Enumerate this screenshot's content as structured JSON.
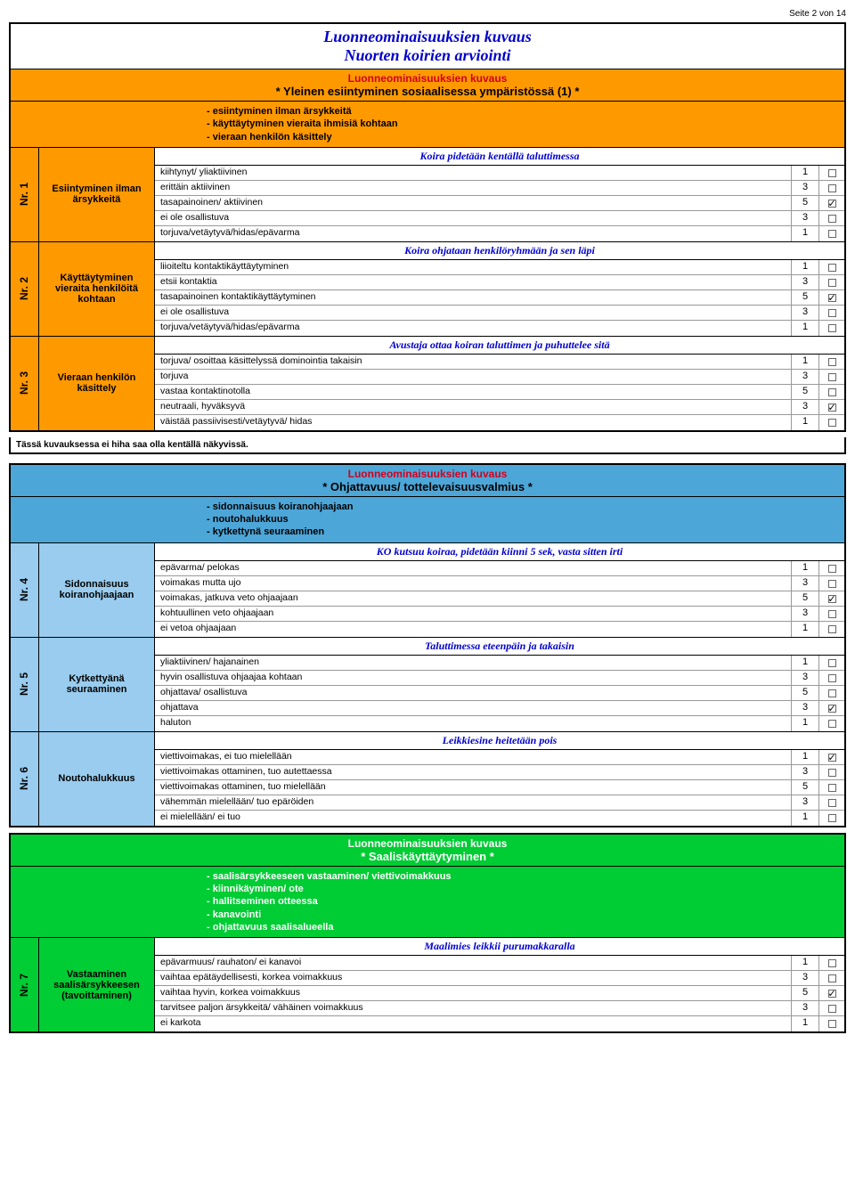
{
  "pageHeader": "Seite 2 von 14",
  "titles": {
    "main": "Luonneominaisuuksien kuvaus",
    "sub": "Nuorten koirien arviointi"
  },
  "lk": "Luonneominaisuuksien kuvaus",
  "section1": {
    "title": "* Yleinen esiintyminen sosiaalisessa ympäristössä (1) *",
    "bullets": [
      "- esiintyminen ilman ärsykkeitä",
      "- käyttäytyminen vieraita ihmisiä kohtaan",
      "- vieraan henkilön käsittely"
    ],
    "note": "Tässä kuvauksessa ei hiha saa olla kentällä näkyvissä.",
    "blocks": [
      {
        "nr": "Nr. 1",
        "cat": "Esiintyminen ilman ärsykkeitä",
        "exercise": "Koira pidetään kentällä taluttimessa",
        "opts": [
          {
            "t": "kiihtynyt/ yliaktiivinen",
            "s": "1",
            "c": false
          },
          {
            "t": "erittäin aktiivinen",
            "s": "3",
            "c": false
          },
          {
            "t": "tasapainoinen/ aktiivinen",
            "s": "5",
            "c": true
          },
          {
            "t": "ei ole osallistuva",
            "s": "3",
            "c": false
          },
          {
            "t": "torjuva/vetäytyvä/hidas/epävarma",
            "s": "1",
            "c": false
          }
        ]
      },
      {
        "nr": "Nr. 2",
        "cat": "Käyttäytyminen vieraita henkilöitä kohtaan",
        "exercise": "Koira ohjataan henkilöryhmään ja sen läpi",
        "opts": [
          {
            "t": "liioiteltu kontaktikäyttäytyminen",
            "s": "1",
            "c": false
          },
          {
            "t": "etsii kontaktia",
            "s": "3",
            "c": false
          },
          {
            "t": "tasapainoinen kontaktikäyttäytyminen",
            "s": "5",
            "c": true
          },
          {
            "t": "ei ole osallistuva",
            "s": "3",
            "c": false
          },
          {
            "t": "torjuva/vetäytyvä/hidas/epävarma",
            "s": "1",
            "c": false
          }
        ]
      },
      {
        "nr": "Nr. 3",
        "cat": "Vieraan henkilön käsittely",
        "exercise": "Avustaja ottaa koiran taluttimen ja puhuttelee sitä",
        "opts": [
          {
            "t": "torjuva/ osoittaa käsittelyssä dominointia takaisin",
            "s": "1",
            "c": false
          },
          {
            "t": "torjuva",
            "s": "3",
            "c": false
          },
          {
            "t": "vastaa kontaktinotolla",
            "s": "5",
            "c": false
          },
          {
            "t": "neutraali, hyväksyvä",
            "s": "3",
            "c": true
          },
          {
            "t": "väistää passiivisesti/vetäytyvä/ hidas",
            "s": "1",
            "c": false
          }
        ]
      }
    ]
  },
  "section2": {
    "title": "* Ohjattavuus/ tottelevaisuusvalmius *",
    "bullets": [
      "- sidonnaisuus koiranohjaajaan",
      "- noutohalukkuus",
      "- kytkettynä seuraaminen"
    ],
    "blocks": [
      {
        "nr": "Nr. 4",
        "cat": "Sidonnaisuus koiranohjaajaan",
        "exercise": "KO kutsuu koiraa, pidetään kiinni 5 sek, vasta sitten irti",
        "opts": [
          {
            "t": "epävarma/ pelokas",
            "s": "1",
            "c": false
          },
          {
            "t": "voimakas mutta ujo",
            "s": "3",
            "c": false
          },
          {
            "t": "voimakas, jatkuva veto ohjaajaan",
            "s": "5",
            "c": true
          },
          {
            "t": "kohtuullinen veto ohjaajaan",
            "s": "3",
            "c": false
          },
          {
            "t": "ei vetoa ohjaajaan",
            "s": "1",
            "c": false
          }
        ]
      },
      {
        "nr": "Nr. 5",
        "cat": "Kytkettyänä seuraaminen",
        "exercise": "Taluttimessa eteenpäin ja takaisin",
        "opts": [
          {
            "t": "yliaktiivinen/ hajanainen",
            "s": "1",
            "c": false
          },
          {
            "t": "hyvin osallistuva ohjaajaa kohtaan",
            "s": "3",
            "c": false
          },
          {
            "t": "ohjattava/ osallistuva",
            "s": "5",
            "c": false
          },
          {
            "t": "ohjattava",
            "s": "3",
            "c": true
          },
          {
            "t": "haluton",
            "s": "1",
            "c": false
          }
        ]
      },
      {
        "nr": "Nr. 6",
        "cat": "Noutohalukkuus",
        "exercise": "Leikkiesine heitetään pois",
        "opts": [
          {
            "t": "viettivoimakas, ei tuo mielellään",
            "s": "1",
            "c": true
          },
          {
            "t": "viettivoimakas ottaminen, tuo autettaessa",
            "s": "3",
            "c": false
          },
          {
            "t": "viettivoimakas ottaminen, tuo mielellään",
            "s": "5",
            "c": false
          },
          {
            "t": "vähemmän mielellään/ tuo epäröiden",
            "s": "3",
            "c": false
          },
          {
            "t": "ei mielellään/ ei tuo",
            "s": "1",
            "c": false
          }
        ]
      }
    ]
  },
  "section3": {
    "title": "* Saaliskäyttäytyminen *",
    "bullets": [
      "- saalisärsykkeeseen vastaaminen/ viettivoimakkuus",
      "- kiinnikäyminen/ ote",
      "- hallitseminen otteessa",
      "- kanavointi",
      "- ohjattavuus saalisalueella"
    ],
    "blocks": [
      {
        "nr": "Nr. 7",
        "cat": "Vastaaminen saalisärsykkeesen (tavoittaminen)",
        "exercise": "Maalimies leikkii purumakkaralla",
        "opts": [
          {
            "t": "epävarmuus/ rauhaton/ ei kanavoi",
            "s": "1",
            "c": false
          },
          {
            "t": "vaihtaa epätäydellisesti, korkea voimakkuus",
            "s": "3",
            "c": false
          },
          {
            "t": "vaihtaa hyvin, korkea voimakkuus",
            "s": "5",
            "c": true
          },
          {
            "t": "tarvitsee paljon ärsykkeitä/ vähäinen voimakkuus",
            "s": "3",
            "c": false
          },
          {
            "t": "ei karkota",
            "s": "1",
            "c": false
          }
        ]
      }
    ]
  }
}
